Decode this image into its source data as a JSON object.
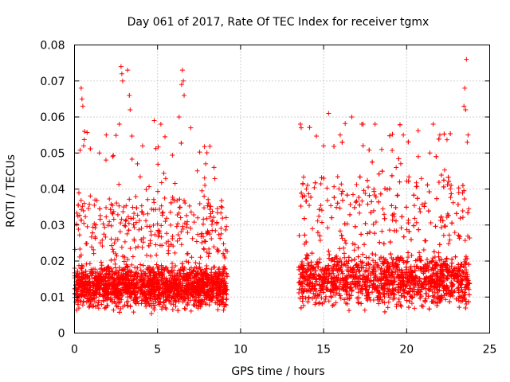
{
  "chart_data": {
    "type": "scatter",
    "title": "Day 061 of 2017, Rate Of TEC Index for receiver tgmx",
    "xlabel": "GPS time / hours",
    "ylabel": "ROTI / TECUs",
    "xlim": [
      0,
      25
    ],
    "ylim": [
      0,
      0.08
    ],
    "grid": true,
    "marker": "+",
    "color": "#ff0000",
    "x_ticks": [
      0,
      5,
      10,
      15,
      20,
      25
    ],
    "x_tick_labels": [
      "0",
      "5",
      "10",
      "15",
      "20",
      "25"
    ],
    "y_ticks": [
      0,
      0.01,
      0.02,
      0.03,
      0.04,
      0.05,
      0.06,
      0.07,
      0.08
    ],
    "y_tick_labels": [
      "0",
      "0.01",
      "0.02",
      "0.03",
      "0.04",
      "0.05",
      "0.06",
      "0.07",
      "0.08"
    ],
    "data_segments": [
      {
        "x_start": 0.0,
        "x_end": 9.2,
        "typical_min": 0.003,
        "typical_max": 0.03,
        "peak": 0.074
      },
      {
        "x_start": 13.5,
        "x_end": 23.8,
        "typical_min": 0.003,
        "typical_max": 0.035,
        "peak": 0.076
      }
    ],
    "series": [
      {
        "name": "ROTI",
        "points": [
          [
            0.4,
            0.068
          ],
          [
            0.45,
            0.065
          ],
          [
            0.5,
            0.063
          ],
          [
            0.6,
            0.056
          ],
          [
            0.55,
            0.052
          ],
          [
            2.8,
            0.074
          ],
          [
            2.85,
            0.072
          ],
          [
            2.9,
            0.07
          ],
          [
            3.2,
            0.073
          ],
          [
            3.3,
            0.066
          ],
          [
            3.35,
            0.062
          ],
          [
            2.7,
            0.058
          ],
          [
            6.5,
            0.073
          ],
          [
            6.55,
            0.07
          ],
          [
            6.45,
            0.069
          ],
          [
            6.6,
            0.066
          ],
          [
            6.3,
            0.06
          ],
          [
            5.2,
            0.058
          ],
          [
            4.8,
            0.059
          ],
          [
            7.0,
            0.057
          ],
          [
            1.5,
            0.05
          ],
          [
            2.3,
            0.049
          ],
          [
            4.1,
            0.052
          ],
          [
            7.9,
            0.047
          ],
          [
            8.4,
            0.046
          ],
          [
            13.6,
            0.058
          ],
          [
            13.65,
            0.057
          ],
          [
            15.3,
            0.061
          ],
          [
            16.7,
            0.06
          ],
          [
            17.3,
            0.058
          ],
          [
            18.1,
            0.058
          ],
          [
            21.6,
            0.058
          ],
          [
            22.0,
            0.055
          ],
          [
            19.8,
            0.055
          ],
          [
            16.0,
            0.055
          ],
          [
            23.6,
            0.076
          ],
          [
            23.5,
            0.068
          ],
          [
            23.45,
            0.063
          ],
          [
            23.55,
            0.062
          ],
          [
            23.7,
            0.055
          ],
          [
            23.65,
            0.053
          ],
          [
            21.4,
            0.05
          ],
          [
            15.0,
            0.052
          ],
          [
            18.5,
            0.051
          ],
          [
            20.7,
            0.049
          ]
        ]
      }
    ]
  }
}
